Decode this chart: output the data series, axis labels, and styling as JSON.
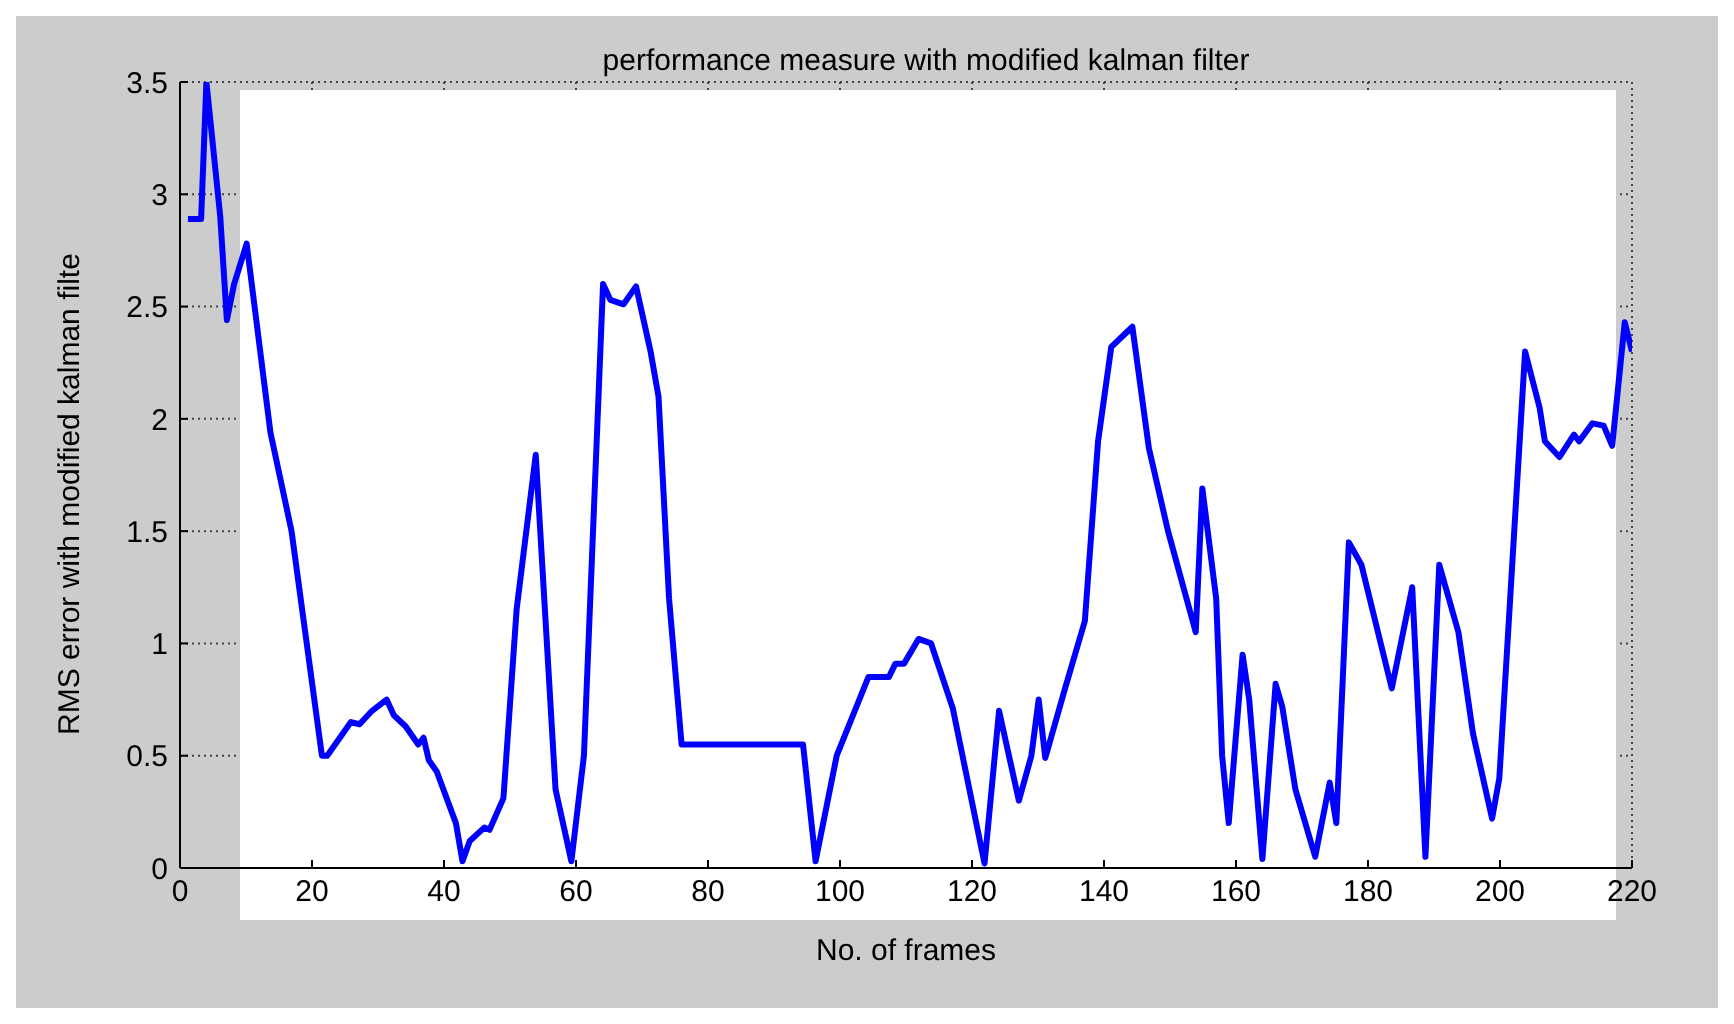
{
  "chart_data": {
    "type": "line",
    "title": "performance measure with modified kalman filter",
    "xlabel": "No. of frames",
    "ylabel": "RMS error with modified kalman filte",
    "x": [
      1.2,
      3.2,
      4,
      6.1,
      7.1,
      8.2,
      10.1,
      13.7,
      16.9,
      21.5,
      22.3,
      25.9,
      27.2,
      29.1,
      31.3,
      32.4,
      34.2,
      36.1,
      36.9,
      37.7,
      38.9,
      41.8,
      42.8,
      43.9,
      46.1,
      46.9,
      49,
      51,
      53.9,
      56.9,
      59.3,
      61.2,
      64.1,
      65.2,
      67.2,
      69.1,
      71.3,
      72.5,
      74.1,
      76,
      94.4,
      96.3,
      99.5,
      104.3,
      107.4,
      108.4,
      109.7,
      111.9,
      113.8,
      117.1,
      121.9,
      124.1,
      127.1,
      129,
      130.1,
      131.1,
      134.1,
      137.1,
      139.1,
      141.1,
      144.3,
      146.8,
      149.7,
      153.9,
      154.9,
      157,
      157.9,
      158.9,
      161,
      162,
      164,
      166,
      167,
      169,
      172,
      174.2,
      175.2,
      177.1,
      179,
      183.6,
      186.7,
      188.7,
      190.8,
      193.7,
      195.9,
      198.8,
      199.9,
      203.8,
      206,
      206.8,
      209,
      211.2,
      212,
      214,
      215.7,
      217,
      218.9,
      220
    ],
    "series": [
      {
        "color": "#0000ff",
        "values": [
          2.89,
          2.89,
          3.5,
          2.9,
          2.44,
          2.6,
          2.78,
          1.94,
          1.5,
          0.5,
          0.5,
          0.65,
          0.64,
          0.7,
          0.75,
          0.68,
          0.63,
          0.55,
          0.58,
          0.48,
          0.43,
          0.2,
          0.03,
          0.12,
          0.18,
          0.17,
          0.31,
          1.15,
          1.84,
          0.35,
          0.03,
          0.5,
          2.6,
          2.53,
          2.51,
          2.59,
          2.3,
          2.1,
          1.2,
          0.55,
          0.55,
          0.03,
          0.5,
          0.85,
          0.85,
          0.91,
          0.91,
          1.02,
          1.0,
          0.71,
          0.02,
          0.7,
          0.3,
          0.5,
          0.75,
          0.49,
          0.8,
          1.1,
          1.9,
          2.32,
          2.41,
          1.87,
          1.5,
          1.05,
          1.69,
          1.2,
          0.5,
          0.2,
          0.95,
          0.75,
          0.04,
          0.82,
          0.72,
          0.35,
          0.05,
          0.38,
          0.2,
          1.45,
          1.35,
          0.8,
          1.25,
          0.05,
          1.35,
          1.05,
          0.6,
          0.22,
          0.4,
          2.3,
          2.05,
          1.9,
          1.83,
          1.93,
          1.9,
          1.98,
          1.97,
          1.88,
          2.43,
          2.3
        ]
      }
    ],
    "xlim": [
      0,
      220
    ],
    "xticks": [
      0,
      20,
      40,
      60,
      80,
      100,
      120,
      140,
      160,
      180,
      200,
      220
    ],
    "ylim": [
      0,
      3.5
    ],
    "yticks": [
      0,
      0.5,
      1,
      1.5,
      2,
      2.5,
      3,
      3.5
    ],
    "grid": true,
    "legend": false,
    "marker": "none",
    "line_style": "solid"
  }
}
